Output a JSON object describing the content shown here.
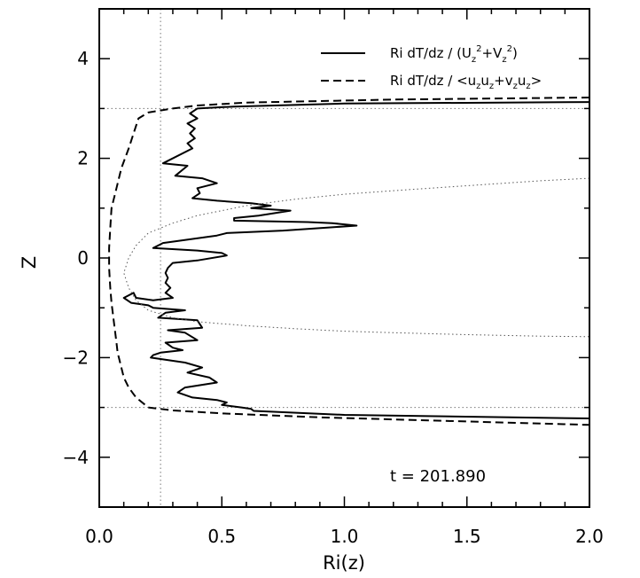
{
  "chart_data": {
    "type": "line",
    "title": "",
    "xlabel": "Ri(z)",
    "ylabel": "Z",
    "xlim": [
      0.0,
      2.0
    ],
    "ylim": [
      -5,
      5
    ],
    "xticks": [
      0.0,
      0.5,
      1.0,
      1.5,
      2.0
    ],
    "xtick_labels": [
      "0.0",
      "0.5",
      "1.0",
      "1.5",
      "2.0"
    ],
    "yticks": [
      -4,
      -2,
      0,
      2,
      4
    ],
    "ytick_labels": [
      "−4",
      "−2",
      "0",
      "2",
      "4"
    ],
    "grid": false,
    "legend_position": "top-right",
    "annotation": "t = 201.890",
    "reference_lines": {
      "vertical_x": [
        0.0,
        0.25
      ],
      "horizontal_y": [
        -3.0,
        3.0
      ]
    },
    "series": [
      {
        "name": "Ri dT/dz / (U_z²+V_z²)",
        "legend": {
          "pre": "Ri dT/dz / (U",
          "s1": "z",
          "p1": "2",
          "mid": "+V",
          "s2": "z",
          "p2": "2",
          "post": ")"
        },
        "style": "solid",
        "x": [
          2.0,
          1.0,
          0.55,
          0.4,
          0.37,
          0.4,
          0.36,
          0.39,
          0.37,
          0.39,
          0.36,
          0.38,
          0.26,
          0.36,
          0.31,
          0.42,
          0.48,
          0.4,
          0.41,
          0.38,
          0.48,
          0.62,
          0.7,
          0.62,
          0.78,
          0.65,
          0.55,
          0.55,
          0.85,
          0.95,
          1.05,
          0.75,
          0.52,
          0.48,
          0.26,
          0.22,
          0.4,
          0.5,
          0.52,
          0.4,
          0.3,
          0.28,
          0.27,
          0.28,
          0.27,
          0.29,
          0.27,
          0.3,
          0.22,
          0.15,
          0.14,
          0.1,
          0.13,
          0.2,
          0.22,
          0.35,
          0.27,
          0.24,
          0.4,
          0.42,
          0.28,
          0.35,
          0.4,
          0.27,
          0.3,
          0.34,
          0.25,
          0.22,
          0.21,
          0.35,
          0.42,
          0.36,
          0.45,
          0.48,
          0.35,
          0.32,
          0.38,
          0.48,
          0.52,
          0.5,
          0.58,
          0.62,
          0.63,
          1.0,
          2.0
        ],
        "y": [
          3.13,
          3.1,
          3.04,
          3.0,
          2.9,
          2.8,
          2.7,
          2.6,
          2.5,
          2.4,
          2.3,
          2.2,
          1.9,
          1.85,
          1.65,
          1.6,
          1.5,
          1.4,
          1.3,
          1.2,
          1.15,
          1.1,
          1.05,
          1.0,
          0.95,
          0.85,
          0.8,
          0.75,
          0.72,
          0.7,
          0.65,
          0.55,
          0.5,
          0.45,
          0.3,
          0.2,
          0.15,
          0.1,
          0.05,
          -0.05,
          -0.1,
          -0.2,
          -0.3,
          -0.4,
          -0.5,
          -0.6,
          -0.7,
          -0.8,
          -0.85,
          -0.8,
          -0.7,
          -0.8,
          -0.9,
          -0.95,
          -1.0,
          -1.05,
          -1.1,
          -1.2,
          -1.25,
          -1.4,
          -1.45,
          -1.5,
          -1.65,
          -1.7,
          -1.8,
          -1.85,
          -1.9,
          -1.95,
          -2.0,
          -2.1,
          -2.2,
          -2.3,
          -2.4,
          -2.5,
          -2.6,
          -2.7,
          -2.8,
          -2.85,
          -2.9,
          -2.95,
          -3.0,
          -3.03,
          -3.07,
          -3.15,
          -3.22
        ]
      },
      {
        "name": "Ri dT/dz / <u_z u_z+v_z u_z>",
        "legend": {
          "pre": "Ri dT/dz / <u",
          "s1": "z",
          "mid": "u",
          "s2": "z",
          "plus": "+v",
          "s3": "z",
          "mid2": "u",
          "s4": "z",
          "post": ">"
        },
        "style": "dashed",
        "x": [
          2.0,
          1.2,
          0.6,
          0.4,
          0.3,
          0.25,
          0.2,
          0.16,
          0.14,
          0.12,
          0.09,
          0.07,
          0.05,
          0.045,
          0.04,
          0.04,
          0.045,
          0.05,
          0.055,
          0.06,
          0.065,
          0.07,
          0.075,
          0.08,
          0.085,
          0.09,
          0.1,
          0.12,
          0.15,
          0.2,
          0.3,
          0.5,
          0.9,
          2.0
        ],
        "y": [
          3.22,
          3.18,
          3.12,
          3.06,
          3.0,
          2.96,
          2.92,
          2.8,
          2.5,
          2.2,
          1.8,
          1.4,
          1.0,
          0.6,
          0.2,
          -0.2,
          -0.6,
          -0.9,
          -1.1,
          -1.3,
          -1.5,
          -1.7,
          -1.9,
          -2.0,
          -2.1,
          -2.2,
          -2.4,
          -2.6,
          -2.8,
          -3.0,
          -3.06,
          -3.12,
          -3.2,
          -3.35
        ]
      },
      {
        "name": "",
        "style": "dotted",
        "x": [
          2.0,
          1.8,
          1.5,
          1.2,
          1.0,
          0.8,
          0.6,
          0.4,
          0.3,
          0.2,
          0.15,
          0.12,
          0.1,
          0.12,
          0.15,
          0.2,
          0.3,
          0.4,
          0.6,
          0.8,
          1.0,
          1.2,
          1.5,
          1.8,
          2.0
        ],
        "y": [
          1.6,
          1.55,
          1.45,
          1.35,
          1.28,
          1.18,
          1.05,
          0.85,
          0.7,
          0.5,
          0.25,
          0.0,
          -0.3,
          -0.6,
          -0.85,
          -1.05,
          -1.2,
          -1.28,
          -1.36,
          -1.42,
          -1.47,
          -1.5,
          -1.54,
          -1.57,
          -1.58
        ]
      }
    ]
  }
}
